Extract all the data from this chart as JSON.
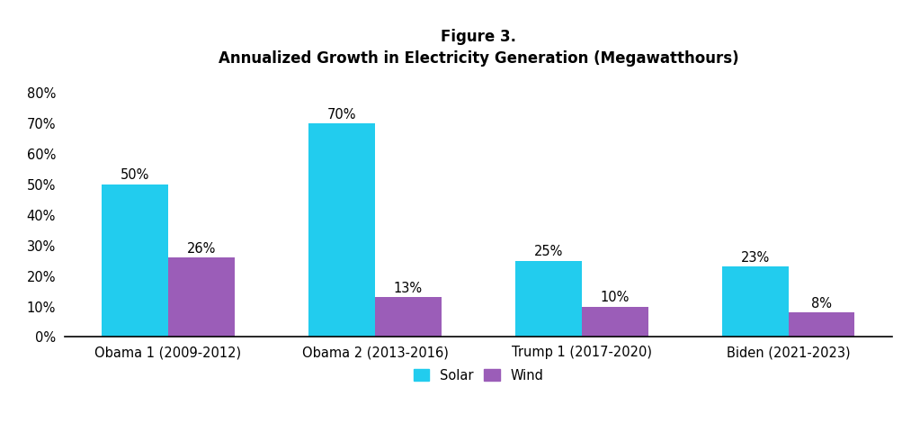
{
  "title_line1": "Figure 3.",
  "title_line2": "Annualized Growth in Electricity Generation (Megawatthours)",
  "categories": [
    "Obama 1 (2009-2012)",
    "Obama 2 (2013-2016)",
    "Trump 1 (2017-2020)",
    "Biden (2021-2023)"
  ],
  "solar_values": [
    0.5,
    0.7,
    0.25,
    0.23
  ],
  "wind_values": [
    0.26,
    0.13,
    0.1,
    0.08
  ],
  "solar_labels": [
    "50%",
    "70%",
    "25%",
    "23%"
  ],
  "wind_labels": [
    "26%",
    "13%",
    "10%",
    "8%"
  ],
  "solar_color": "#22CCEE",
  "wind_color": "#9B5DB8",
  "background_color": "#FFFFFF",
  "ylim": [
    0,
    0.85
  ],
  "yticks": [
    0.0,
    0.1,
    0.2,
    0.3,
    0.4,
    0.5,
    0.6,
    0.7,
    0.8
  ],
  "ytick_labels": [
    "0%",
    "10%",
    "20%",
    "30%",
    "40%",
    "50%",
    "60%",
    "70%",
    "80%"
  ],
  "legend_solar": "Solar",
  "legend_wind": "Wind",
  "bar_width": 0.32,
  "title_fontsize": 12,
  "tick_fontsize": 10.5,
  "annot_fontsize": 10.5,
  "legend_fontsize": 10.5
}
